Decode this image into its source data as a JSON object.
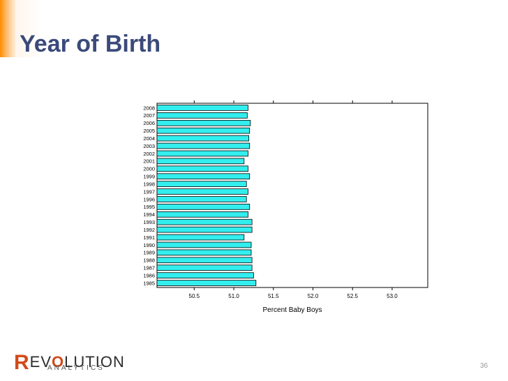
{
  "slide": {
    "title": "Year of Birth",
    "page_number": "36"
  },
  "logo": {
    "first_letter": "R",
    "middle_letters": "EV",
    "o_letter": "O",
    "rest": "LUTION",
    "sub": "ANALYTICS"
  },
  "colors": {
    "title": "#3b4a7a",
    "bar_fill": "#33eeee",
    "bar_stroke": "#000000",
    "accent": "#ff8a00",
    "logo_accent": "#d24a1a"
  },
  "chart_data": {
    "type": "bar",
    "orientation": "horizontal",
    "title": "",
    "xlabel": "Percent Baby Boys",
    "ylabel": "",
    "xlim": [
      50.03,
      53.45
    ],
    "xticks": [
      "50.5",
      "51.0",
      "51.5",
      "52.0",
      "52.5",
      "53.0"
    ],
    "xtick_values": [
      50.5,
      51.0,
      51.5,
      52.0,
      52.5,
      53.0
    ],
    "grid": false,
    "categories": [
      "2008",
      "2007",
      "2006",
      "2005",
      "2004",
      "2003",
      "2002",
      "2001",
      "2000",
      "1999",
      "1998",
      "1997",
      "1996",
      "1995",
      "1994",
      "1993",
      "1992",
      "1991",
      "1990",
      "1989",
      "1988",
      "1987",
      "1986",
      "1985"
    ],
    "values": [
      51.18,
      51.17,
      51.21,
      51.2,
      51.19,
      51.2,
      51.18,
      51.13,
      51.18,
      51.2,
      51.16,
      51.18,
      51.16,
      51.2,
      51.18,
      51.23,
      51.23,
      51.13,
      51.22,
      51.22,
      51.23,
      51.23,
      51.25,
      51.28
    ]
  }
}
